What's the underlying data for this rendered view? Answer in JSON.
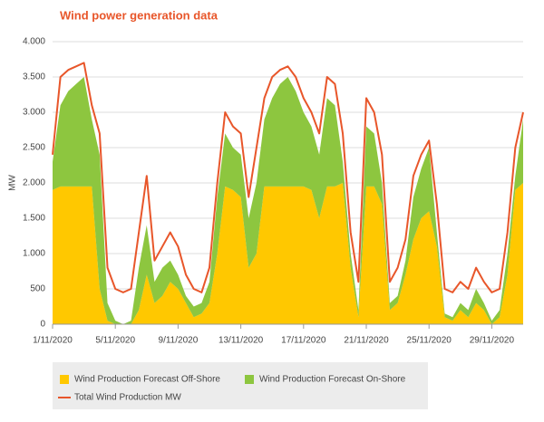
{
  "chart_data": {
    "type": "stacked_area_line",
    "title": "Wind power generation data",
    "y_label": "MW",
    "x": [
      1,
      1.5,
      2,
      2.5,
      3,
      3.5,
      4,
      4.5,
      5,
      5.5,
      6,
      6.5,
      7,
      7.5,
      8,
      8.5,
      9,
      9.5,
      10,
      10.5,
      11,
      11.5,
      12,
      12.5,
      13,
      13.5,
      14,
      14.5,
      15,
      15.5,
      16,
      16.5,
      17,
      17.5,
      18,
      18.5,
      19,
      19.5,
      20,
      20.5,
      21,
      21.5,
      22,
      22.5,
      23,
      23.5,
      24,
      24.5,
      25,
      25.5,
      26,
      26.5,
      27,
      27.5,
      28,
      28.5,
      29,
      29.5,
      30,
      30.5,
      31
    ],
    "series": [
      {
        "name": "Wind Production Forecast Off-Shore",
        "color": "#ffc800",
        "kind": "area",
        "values": [
          1900,
          1950,
          1950,
          1950,
          1950,
          1950,
          500,
          50,
          0,
          0,
          0,
          200,
          700,
          300,
          400,
          600,
          500,
          300,
          100,
          150,
          300,
          1000,
          1950,
          1900,
          1800,
          800,
          1000,
          1950,
          1950,
          1950,
          1950,
          1950,
          1950,
          1900,
          1500,
          1950,
          1950,
          2000,
          800,
          100,
          1950,
          1950,
          1700,
          200,
          300,
          700,
          1200,
          1500,
          1600,
          1100,
          100,
          50,
          200,
          100,
          300,
          200,
          0,
          100,
          700,
          1900,
          2000
        ]
      },
      {
        "name": "Wind Production Forecast On-Shore",
        "color": "#8dc63f",
        "kind": "area",
        "values": [
          400,
          1150,
          1350,
          1450,
          1550,
          950,
          1900,
          250,
          50,
          0,
          50,
          600,
          700,
          300,
          400,
          300,
          200,
          100,
          150,
          150,
          300,
          800,
          750,
          600,
          600,
          700,
          1000,
          950,
          1250,
          1450,
          1550,
          1350,
          1050,
          900,
          900,
          1250,
          1150,
          300,
          200,
          100,
          850,
          750,
          300,
          100,
          100,
          200,
          600,
          700,
          900,
          200,
          50,
          50,
          100,
          100,
          200,
          100,
          50,
          100,
          300,
          200,
          900
        ]
      },
      {
        "name": "Total Wind Production MW",
        "color": "#e8562a",
        "kind": "line",
        "values": [
          2400,
          3500,
          3600,
          3650,
          3700,
          3100,
          2700,
          800,
          500,
          450,
          500,
          1300,
          2100,
          900,
          1100,
          1300,
          1100,
          700,
          500,
          450,
          800,
          2000,
          3000,
          2800,
          2700,
          1800,
          2500,
          3200,
          3500,
          3600,
          3650,
          3500,
          3200,
          3000,
          2700,
          3500,
          3400,
          2700,
          1300,
          600,
          3200,
          3000,
          2400,
          600,
          800,
          1200,
          2100,
          2400,
          2600,
          1700,
          500,
          450,
          600,
          500,
          800,
          600,
          450,
          500,
          1300,
          2500,
          3000
        ]
      }
    ],
    "xlim": [
      1,
      31
    ],
    "xticks": [
      {
        "value": 1,
        "label": "1/11/2020"
      },
      {
        "value": 5,
        "label": "5/11/2020"
      },
      {
        "value": 9,
        "label": "9/11/2020"
      },
      {
        "value": 13,
        "label": "13/11/2020"
      },
      {
        "value": 17,
        "label": "17/11/2020"
      },
      {
        "value": 21,
        "label": "21/11/2020"
      },
      {
        "value": 25,
        "label": "25/11/2020"
      },
      {
        "value": 29,
        "label": "29/11/2020"
      }
    ],
    "ylim": [
      0,
      4000
    ],
    "yticks": [
      0,
      {
        "value": 500,
        "label": "500"
      },
      {
        "value": 1000,
        "label": "1.000"
      },
      {
        "value": 1500,
        "label": "1.500"
      },
      {
        "value": 2000,
        "label": "2.000"
      },
      {
        "value": 2500,
        "label": "2.500"
      },
      {
        "value": 3000,
        "label": "3.000"
      },
      {
        "value": 3500,
        "label": "3.500"
      },
      {
        "value": 4000,
        "label": "4.000"
      }
    ],
    "grid": true
  }
}
